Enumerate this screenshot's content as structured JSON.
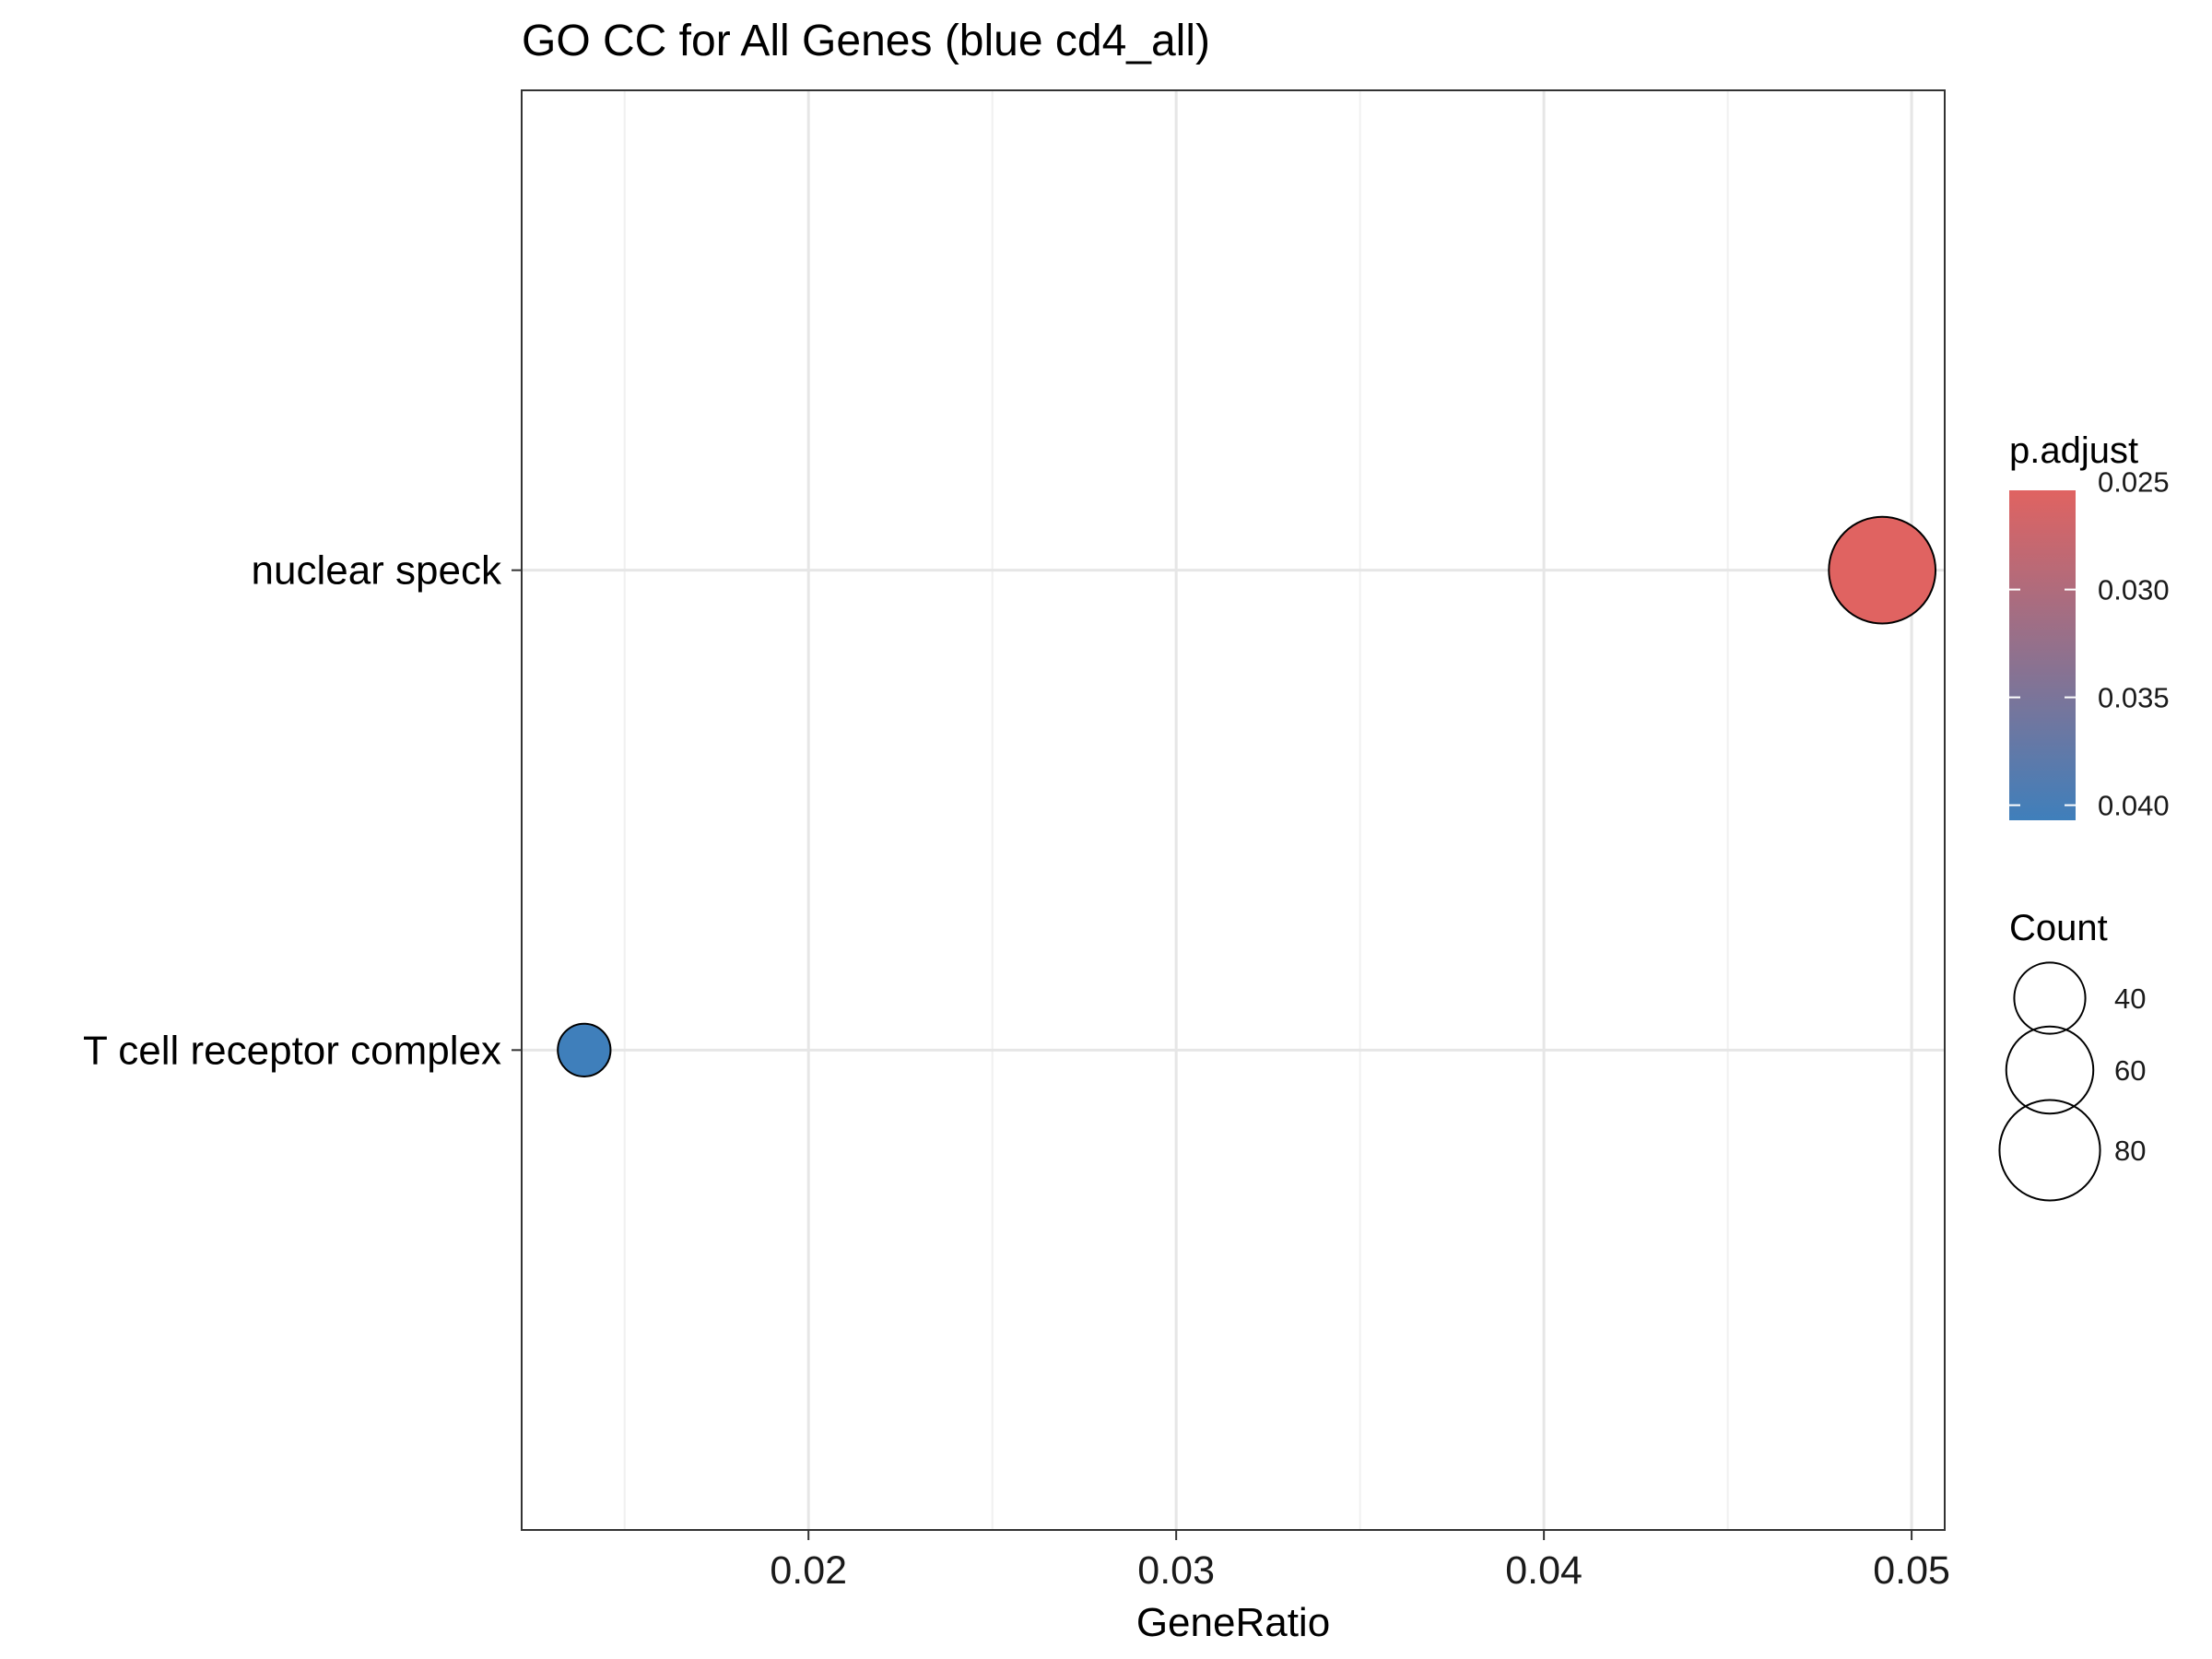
{
  "chart_data": {
    "type": "scatter",
    "title": "GO CC for All Genes (blue cd4_all)",
    "xlabel": "GeneRatio",
    "ylabel": "",
    "xlim": [
      0.0122,
      0.0509
    ],
    "x_ticks": [
      0.02,
      0.03,
      0.04,
      0.05
    ],
    "x_tick_labels": [
      "0.02",
      "0.03",
      "0.04",
      "0.05"
    ],
    "categories": [
      "T cell receptor complex",
      "nuclear speck"
    ],
    "points": [
      {
        "term": "nuclear speck",
        "gene_ratio": 0.0492,
        "count": 90,
        "p_adjust": 0.0254,
        "color": "#e06361"
      },
      {
        "term": "T cell receptor complex",
        "gene_ratio": 0.0139,
        "count": 22,
        "p_adjust": 0.0407,
        "color": "#3f7fbb"
      }
    ],
    "grid": true,
    "legend_position": "right",
    "color_legend": {
      "title": "p.adjust",
      "range": [
        0.0254,
        0.0407
      ],
      "ticks": [
        0.025,
        0.03,
        0.035,
        0.04
      ],
      "tick_labels": [
        "0.025",
        "0.030",
        "0.035",
        "0.040"
      ],
      "low_color": "#e06361",
      "high_color": "#3f7fbb"
    },
    "size_legend": {
      "title": "Count",
      "values": [
        40,
        60,
        80
      ],
      "labels": [
        "40",
        "60",
        "80"
      ]
    }
  }
}
